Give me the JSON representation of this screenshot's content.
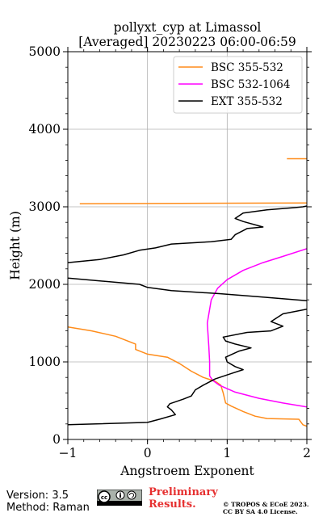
{
  "chart_data": {
    "type": "line",
    "title": "pollyxt_cyp at Limassol",
    "subtitle": "[Averaged] 20230223 06:00-06:59",
    "xlabel": "Angstroem Exponent",
    "ylabel": "Height (m)",
    "xlim": [
      -1,
      2
    ],
    "ylim": [
      0,
      5000
    ],
    "xticks": [
      -1,
      0,
      1,
      2
    ],
    "yticks": [
      0,
      1000,
      2000,
      3000,
      4000,
      5000
    ],
    "grid": true,
    "legend_position": "top-right",
    "series": [
      {
        "name": "BSC 355-532",
        "color": "#ff8c1a",
        "points": [
          [
            2.0,
            170
          ],
          [
            1.95,
            190
          ],
          [
            1.9,
            260
          ],
          [
            1.5,
            270
          ],
          [
            1.35,
            300
          ],
          [
            1.2,
            360
          ],
          [
            1.05,
            430
          ],
          [
            0.98,
            470
          ],
          [
            0.95,
            600
          ],
          [
            0.92,
            700
          ],
          [
            0.85,
            750
          ],
          [
            0.7,
            800
          ],
          [
            0.55,
            880
          ],
          [
            0.4,
            980
          ],
          [
            0.25,
            1060
          ],
          [
            0.0,
            1100
          ],
          [
            -0.15,
            1160
          ],
          [
            -0.15,
            1230
          ],
          [
            -0.4,
            1330
          ],
          [
            -0.7,
            1400
          ],
          [
            -1.0,
            1450
          ],
          [
            -0.85,
            3040
          ],
          [
            2.0,
            3050
          ],
          [
            1.75,
            3620
          ],
          [
            2.0,
            3620
          ]
        ],
        "segments": [
          [
            0,
            20
          ],
          [
            21,
            22
          ],
          [
            23,
            24
          ]
        ]
      },
      {
        "name": "BSC 532-1064",
        "color": "#ff00ff",
        "points": [
          [
            2.0,
            420
          ],
          [
            1.7,
            470
          ],
          [
            1.4,
            530
          ],
          [
            1.1,
            610
          ],
          [
            0.9,
            700
          ],
          [
            0.82,
            760
          ],
          [
            0.78,
            820
          ],
          [
            0.78,
            1000
          ],
          [
            0.77,
            1200
          ],
          [
            0.75,
            1500
          ],
          [
            0.8,
            1800
          ],
          [
            0.88,
            1950
          ],
          [
            1.0,
            2060
          ],
          [
            1.2,
            2180
          ],
          [
            1.45,
            2280
          ],
          [
            1.7,
            2360
          ],
          [
            2.0,
            2460
          ]
        ],
        "segments": [
          [
            0,
            16
          ]
        ]
      },
      {
        "name": "EXT 355-532",
        "color": "#000000",
        "points": [
          [
            -1.0,
            190
          ],
          [
            0.0,
            220
          ],
          [
            0.15,
            260
          ],
          [
            0.35,
            320
          ],
          [
            0.3,
            380
          ],
          [
            0.25,
            420
          ],
          [
            0.28,
            460
          ],
          [
            0.45,
            520
          ],
          [
            0.55,
            560
          ],
          [
            0.6,
            640
          ],
          [
            0.7,
            700
          ],
          [
            0.85,
            780
          ],
          [
            1.05,
            850
          ],
          [
            1.2,
            900
          ],
          [
            1.1,
            940
          ],
          [
            1.0,
            1000
          ],
          [
            0.98,
            1060
          ],
          [
            1.15,
            1140
          ],
          [
            1.3,
            1180
          ],
          [
            1.1,
            1230
          ],
          [
            0.98,
            1270
          ],
          [
            0.95,
            1320
          ],
          [
            1.25,
            1380
          ],
          [
            1.55,
            1400
          ],
          [
            1.7,
            1460
          ],
          [
            1.55,
            1520
          ],
          [
            1.7,
            1620
          ],
          [
            2.0,
            1680
          ],
          [
            2.0,
            1790
          ],
          [
            1.4,
            1840
          ],
          [
            0.9,
            1880
          ],
          [
            0.3,
            1920
          ],
          [
            0.0,
            1960
          ],
          [
            -0.1,
            2000
          ],
          [
            -1.0,
            2080
          ],
          [
            -1.0,
            2280
          ],
          [
            -0.6,
            2320
          ],
          [
            -0.3,
            2380
          ],
          [
            -0.1,
            2440
          ],
          [
            0.1,
            2470
          ],
          [
            0.3,
            2520
          ],
          [
            0.8,
            2550
          ],
          [
            1.05,
            2580
          ],
          [
            1.1,
            2640
          ],
          [
            1.25,
            2720
          ],
          [
            1.45,
            2740
          ],
          [
            1.2,
            2810
          ],
          [
            1.1,
            2850
          ],
          [
            1.2,
            2920
          ],
          [
            1.5,
            2960
          ],
          [
            1.85,
            2990
          ],
          [
            1.95,
            3000
          ],
          [
            2.0,
            3010
          ]
        ],
        "segments": [
          [
            0,
            27
          ],
          [
            28,
            34
          ],
          [
            35,
            52
          ]
        ]
      }
    ]
  },
  "footer": {
    "version": "Version: 3.5",
    "method": "Method: Raman",
    "preliminary_line1": "Preliminary",
    "preliminary_line2": "Results.",
    "copyright_line1": "© TROPOS & ECoE 2023.",
    "copyright_line2": "CC BY SA 4.0 License."
  }
}
